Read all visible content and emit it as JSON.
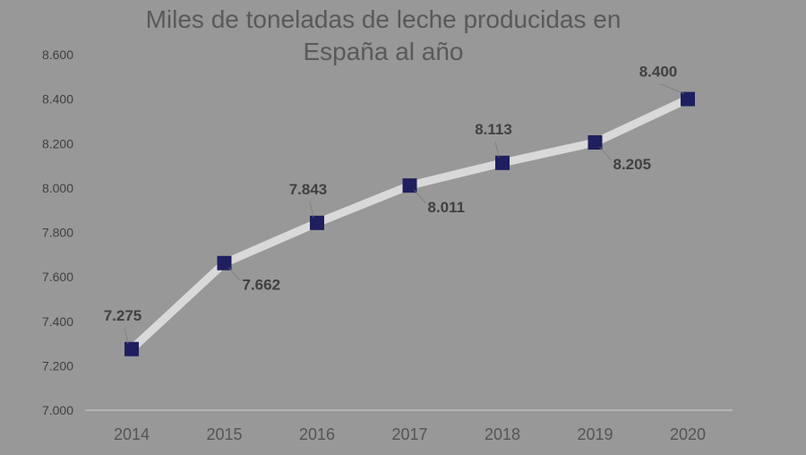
{
  "chart_data": {
    "type": "line",
    "title_lines": [
      "Miles de toneladas de leche producidas en",
      "España al año"
    ],
    "xlabel": "",
    "ylabel": "",
    "categories": [
      "2014",
      "2015",
      "2016",
      "2017",
      "2018",
      "2019",
      "2020"
    ],
    "series": [
      {
        "values": [
          7275,
          7662,
          7843,
          8011,
          8113,
          8205,
          8400
        ],
        "labels": [
          "7.275",
          "7.662",
          "7.843",
          "8.011",
          "8.113",
          "8.205",
          "8.400"
        ],
        "label_positions": [
          "above",
          "below",
          "above",
          "below",
          "above",
          "below",
          "above"
        ]
      }
    ],
    "ylim": [
      7000,
      8600
    ],
    "yticks": [
      7000,
      7200,
      7400,
      7600,
      7800,
      8000,
      8200,
      8400,
      8600
    ],
    "ytick_labels": [
      "7.000",
      "7.200",
      "7.400",
      "7.600",
      "7.800",
      "8.000",
      "8.200",
      "8.400",
      "8.600"
    ],
    "grid": false,
    "legend": "none",
    "colors": {
      "background": "#989898",
      "line": "#d9d9d9",
      "marker": "#1f1f5f",
      "title": "#595959",
      "axis": "#d0d0d0",
      "tick_text": "#3f3f3f",
      "label_text": "#404040"
    }
  }
}
